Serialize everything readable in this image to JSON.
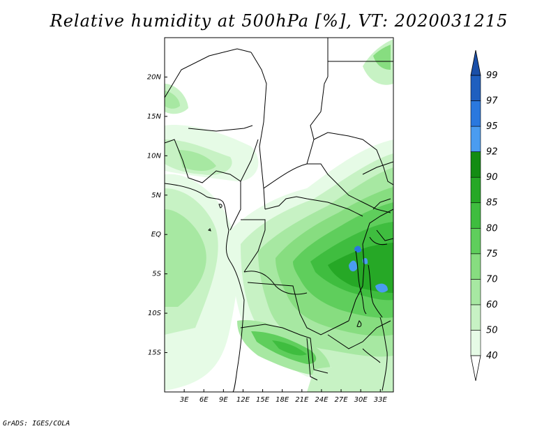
{
  "title": "Relative humidity at 500hPa [%], VT: 2020031215",
  "credit": "GrADS: IGES/COLA",
  "map": {
    "lat_labels": [
      {
        "text": "20N",
        "value": 20
      },
      {
        "text": "15N",
        "value": 15
      },
      {
        "text": "10N",
        "value": 10
      },
      {
        "text": "5N",
        "value": 5
      },
      {
        "text": "EQ",
        "value": 0
      },
      {
        "text": "5S",
        "value": -5
      },
      {
        "text": "10S",
        "value": -10
      },
      {
        "text": "15S",
        "value": -15
      }
    ],
    "lon_labels": [
      {
        "text": "3E",
        "value": 3
      },
      {
        "text": "6E",
        "value": 6
      },
      {
        "text": "9E",
        "value": 9
      },
      {
        "text": "12E",
        "value": 12
      },
      {
        "text": "15E",
        "value": 15
      },
      {
        "text": "18E",
        "value": 18
      },
      {
        "text": "21E",
        "value": 21
      },
      {
        "text": "24E",
        "value": 24
      },
      {
        "text": "27E",
        "value": 27
      },
      {
        "text": "30E",
        "value": 30
      },
      {
        "text": "33E",
        "value": 33
      }
    ],
    "lon_range": [
      0,
      35
    ],
    "lat_range": [
      -20,
      25
    ]
  },
  "colorbar": {
    "levels": [
      {
        "label": "40",
        "color": "#ffffff"
      },
      {
        "label": "50",
        "color": "#e6fbe6"
      },
      {
        "label": "60",
        "color": "#c7f2c4"
      },
      {
        "label": "70",
        "color": "#a7e8a2"
      },
      {
        "label": "75",
        "color": "#87dd80"
      },
      {
        "label": "80",
        "color": "#5fce5c"
      },
      {
        "label": "85",
        "color": "#3fbd3f"
      },
      {
        "label": "90",
        "color": "#26a826"
      },
      {
        "label": "92",
        "color": "#138c13"
      },
      {
        "label": "95",
        "color": "#4a9cf0"
      },
      {
        "label": "97",
        "color": "#2a78de"
      },
      {
        "label": "99",
        "color": "#1f5fbf"
      }
    ]
  }
}
